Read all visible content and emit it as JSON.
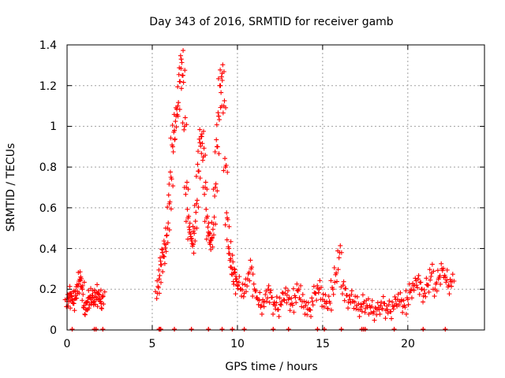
{
  "chart_data": {
    "type": "scatter",
    "title": "Day 343 of 2016, SRMTID for receiver gamb",
    "xlabel": "GPS time / hours",
    "ylabel": "SRMTID / TECUs",
    "xlim": [
      0,
      24.5
    ],
    "ylim": [
      0,
      1.4
    ],
    "xticks": [
      0,
      5,
      10,
      15,
      20
    ],
    "xtick_labels": [
      "0",
      "5",
      "10",
      "15",
      "20"
    ],
    "yticks": [
      0,
      0.2,
      0.4,
      0.6,
      0.8,
      1.0,
      1.2,
      1.4
    ],
    "ytick_labels": [
      "0",
      "0.2",
      "0.4",
      "0.6",
      "0.8",
      "1",
      "1.2",
      "1.4"
    ],
    "grid": true,
    "marker": "+",
    "color": "#ff0000",
    "series": [
      {
        "name": "SRMTID",
        "x": [
          0.0,
          0.1,
          0.2,
          0.3,
          0.4,
          0.5,
          0.6,
          0.7,
          0.8,
          0.9,
          1.0,
          1.1,
          1.2,
          1.3,
          1.4,
          1.5,
          1.6,
          1.7,
          1.8,
          1.9,
          2.0,
          2.1,
          5.3,
          5.4,
          5.5,
          5.6,
          5.7,
          5.8,
          5.9,
          6.0,
          6.1,
          6.2,
          6.3,
          6.4,
          6.5,
          6.6,
          6.7,
          6.8,
          6.9,
          7.0,
          7.1,
          7.2,
          7.3,
          7.4,
          7.5,
          7.6,
          7.7,
          7.8,
          7.9,
          8.0,
          8.1,
          8.2,
          8.3,
          8.4,
          8.5,
          8.6,
          8.7,
          8.8,
          8.9,
          9.0,
          9.1,
          9.2,
          9.3,
          9.4,
          9.5,
          9.6,
          9.7,
          9.8,
          9.9,
          10.0,
          10.2,
          10.4,
          10.6,
          10.8,
          11.0,
          11.2,
          11.4,
          11.6,
          11.8,
          12.0,
          12.2,
          12.4,
          12.6,
          12.8,
          13.0,
          13.2,
          13.4,
          13.6,
          13.8,
          14.0,
          14.2,
          14.4,
          14.6,
          14.8,
          15.0,
          15.2,
          15.4,
          15.6,
          15.8,
          16.0,
          16.2,
          16.4,
          16.6,
          16.8,
          17.0,
          17.2,
          17.4,
          17.6,
          17.8,
          18.0,
          18.2,
          18.4,
          18.6,
          18.8,
          19.0,
          19.2,
          19.4,
          19.6,
          19.8,
          20.0,
          20.2,
          20.4,
          20.6,
          20.8,
          21.0,
          21.2,
          21.4,
          21.6,
          21.8,
          22.0,
          22.2,
          22.4,
          22.6
        ],
        "y": [
          0.14,
          0.16,
          0.18,
          0.15,
          0.13,
          0.17,
          0.19,
          0.24,
          0.26,
          0.2,
          0.12,
          0.1,
          0.14,
          0.16,
          0.15,
          0.17,
          0.14,
          0.16,
          0.18,
          0.15,
          0.13,
          0.17,
          0.18,
          0.25,
          0.32,
          0.38,
          0.36,
          0.42,
          0.5,
          0.62,
          0.75,
          0.9,
          0.98,
          1.05,
          1.1,
          1.22,
          1.33,
          1.25,
          1.0,
          0.7,
          0.55,
          0.48,
          0.45,
          0.42,
          0.5,
          0.62,
          0.78,
          0.92,
          0.95,
          0.85,
          0.7,
          0.55,
          0.48,
          0.42,
          0.45,
          0.52,
          0.7,
          0.9,
          1.05,
          1.2,
          1.26,
          1.1,
          0.8,
          0.55,
          0.4,
          0.35,
          0.3,
          0.28,
          0.25,
          0.22,
          0.2,
          0.18,
          0.25,
          0.3,
          0.2,
          0.15,
          0.12,
          0.14,
          0.2,
          0.16,
          0.12,
          0.1,
          0.14,
          0.18,
          0.15,
          0.13,
          0.16,
          0.2,
          0.14,
          0.12,
          0.1,
          0.14,
          0.18,
          0.2,
          0.15,
          0.13,
          0.14,
          0.2,
          0.28,
          0.38,
          0.22,
          0.17,
          0.15,
          0.14,
          0.12,
          0.1,
          0.13,
          0.12,
          0.11,
          0.09,
          0.1,
          0.12,
          0.13,
          0.1,
          0.09,
          0.12,
          0.15,
          0.14,
          0.12,
          0.15,
          0.2,
          0.22,
          0.25,
          0.2,
          0.18,
          0.22,
          0.28,
          0.2,
          0.25,
          0.3,
          0.26,
          0.22,
          0.24
        ]
      }
    ],
    "bottom_markers_x": [
      0.3,
      1.6,
      1.7,
      2.1,
      5.4,
      5.45,
      5.5,
      6.3,
      7.3,
      8.3,
      9.1,
      9.7,
      10.4,
      12.1,
      13.0,
      14.7,
      15.1,
      16.1,
      17.3,
      17.4,
      17.5,
      19.2,
      20.9,
      22.2
    ]
  }
}
